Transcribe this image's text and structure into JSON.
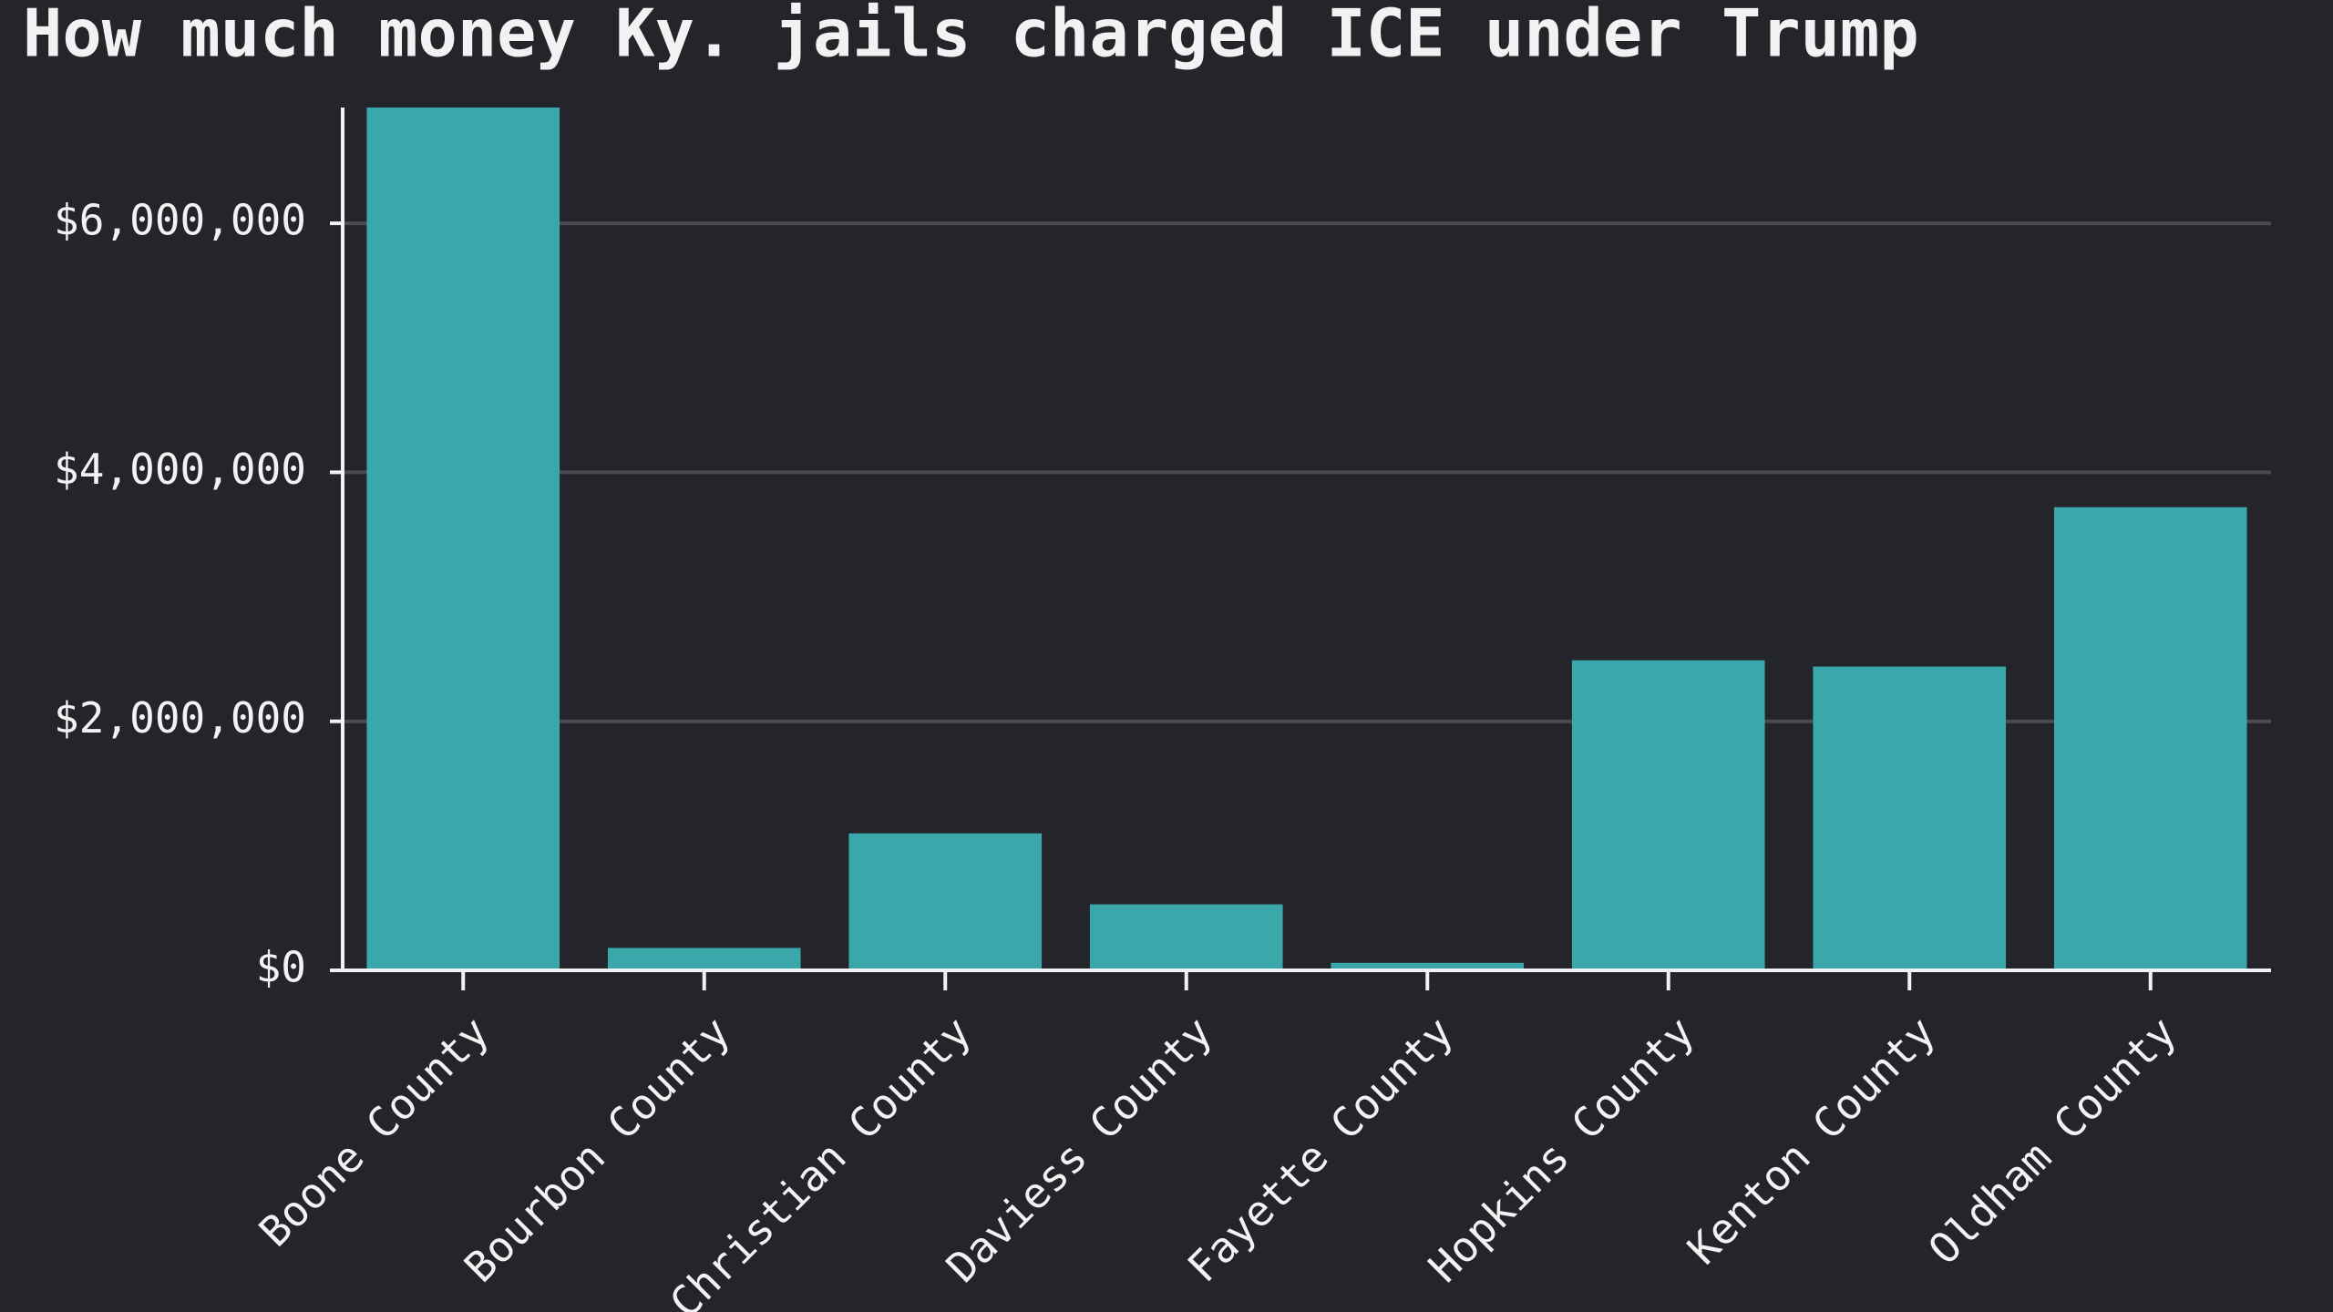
{
  "chart_data": {
    "type": "bar",
    "title": "How much money Ky. jails charged ICE under Trump",
    "categories": [
      "Boone County",
      "Bourbon County",
      "Christian County",
      "Daviess County",
      "Fayette County",
      "Hopkins County",
      "Kenton County",
      "Oldham County"
    ],
    "values": [
      6930000,
      180000,
      1100000,
      530000,
      60000,
      2490000,
      2440000,
      3720000
    ],
    "color": "#3aa8ab",
    "ylim": [
      0,
      6930000
    ],
    "yticks": [
      {
        "value": 0,
        "label": "$0"
      },
      {
        "value": 2000000,
        "label": "$2,000,000"
      },
      {
        "value": 4000000,
        "label": "$4,000,000"
      },
      {
        "value": 6000000,
        "label": "$6,000,000"
      }
    ],
    "grid": true
  }
}
